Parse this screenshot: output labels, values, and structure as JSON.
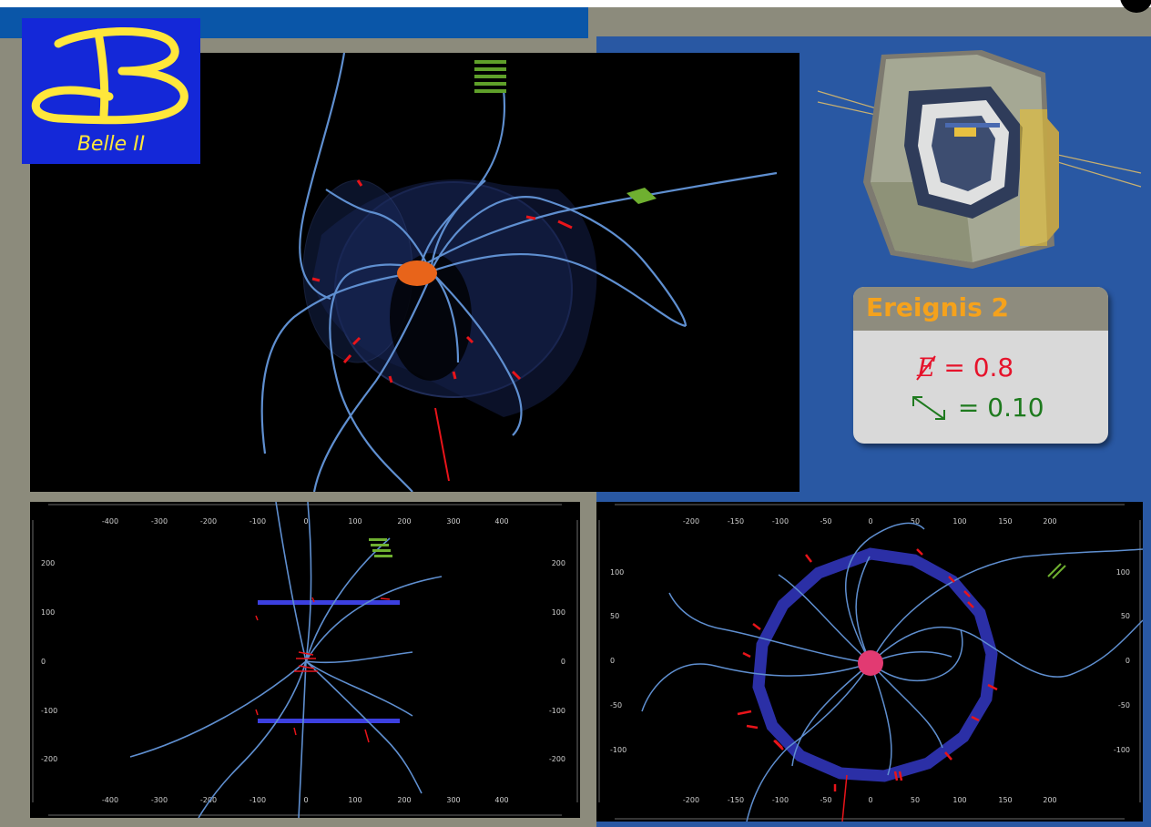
{
  "logo": {
    "text": "Belle II",
    "color": "#ffe73b",
    "background": "#1428d8"
  },
  "event_box": {
    "title": "Ereignis 2",
    "energy_symbol": "E",
    "energy_expression": "= 0.8",
    "distance_expression": "= 0.10",
    "title_color": "#f5a21c",
    "energy_color": "#e6132b",
    "distance_color": "#1e7a1e"
  },
  "side_view": {
    "x_ticks": [
      "-400",
      "-300",
      "-200",
      "-100",
      "0",
      "100",
      "200",
      "300",
      "400"
    ],
    "y_ticks": [
      "200",
      "100",
      "0",
      "-100",
      "-200"
    ]
  },
  "front_view": {
    "x_ticks": [
      "-200",
      "-150",
      "-100",
      "-50",
      "0",
      "50",
      "100",
      "150",
      "200"
    ],
    "y_ticks": [
      "100",
      "50",
      "0",
      "-50",
      "-100"
    ]
  },
  "colors": {
    "track": "#5f8fd0",
    "hit": "#e8141a",
    "detector_ring": "#2b2fa6",
    "vertex": "#ff3f7a",
    "background_gray": "#8c8b7c",
    "background_blue": "#2958a3"
  }
}
